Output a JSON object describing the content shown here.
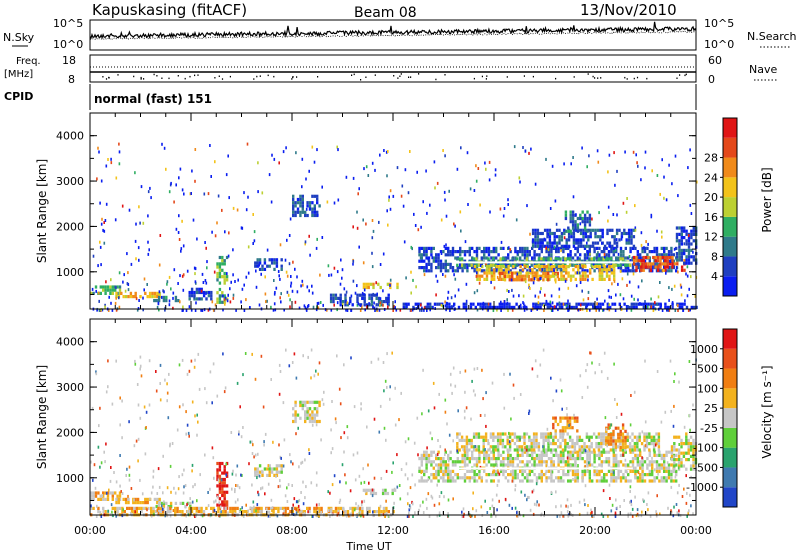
{
  "header": {
    "title": "Kapuskasing (fitACF)",
    "beam": "Beam 08",
    "date": "13/Nov/2010"
  },
  "noise_panel": {
    "left_label": "N.Sky",
    "right_label": "N.Search",
    "left_ticks": [
      "10^5",
      "10^0"
    ],
    "right_ticks": [
      "10^5",
      "10^0"
    ]
  },
  "freq_panel": {
    "left_label_line1": "Freq.",
    "left_label_line2": "[MHz]",
    "right_label": "Nave",
    "left_ticks": [
      "18",
      "8"
    ],
    "right_ticks": [
      "60",
      "0"
    ]
  },
  "cpid": {
    "label": "CPID",
    "value": "normal (fast) 151"
  },
  "x_axis": {
    "label": "Time UT",
    "ticks": [
      "00:00",
      "04:00",
      "08:00",
      "12:00",
      "16:00",
      "20:00",
      "00:00"
    ]
  },
  "power_panel": {
    "ylabel": "Slant Range [km]",
    "yticks": [
      "1000",
      "2000",
      "3000",
      "4000"
    ],
    "colorbar_label": "Power [dB]",
    "colorbar_ticks": [
      "4",
      "8",
      "12",
      "16",
      "20",
      "24",
      "28"
    ],
    "colors": [
      "#0a1ef0",
      "#1f3fc0",
      "#2f7a8a",
      "#2fae62",
      "#bcd032",
      "#f3c31a",
      "#f08a1a",
      "#e4481a",
      "#e01515"
    ]
  },
  "velocity_panel": {
    "ylabel": "Slant Range [km]",
    "yticks": [
      "1000",
      "2000",
      "3000",
      "4000"
    ],
    "colorbar_label": "Velocity [m s⁻¹]",
    "colorbar_ticks": [
      "1000",
      "500",
      "100",
      "25",
      "-25",
      "-100",
      "-500",
      "-1000"
    ],
    "colors": [
      "#2146c8",
      "#3f7ab0",
      "#2aa36e",
      "#5fcf3a",
      "#c6c6c6",
      "#f3b21e",
      "#f07e12",
      "#e8501a",
      "#e01515"
    ]
  },
  "chart_data": {
    "type": "heatmap",
    "x_range_hours": [
      0,
      24
    ],
    "y_range_km": [
      180,
      4500
    ],
    "power_blobs": [
      {
        "t0": 0.0,
        "t1": 1.2,
        "r0": 550,
        "r1": 700,
        "level": 3
      },
      {
        "t0": 1.0,
        "t1": 2.8,
        "r0": 470,
        "r1": 560,
        "level": 5
      },
      {
        "t0": 2.5,
        "t1": 3.8,
        "r0": 380,
        "r1": 470,
        "level": 2
      },
      {
        "t0": 3.9,
        "t1": 4.8,
        "r0": 400,
        "r1": 650,
        "level": 1
      },
      {
        "t0": 5.0,
        "t1": 5.4,
        "r0": 350,
        "r1": 1350,
        "level": 3
      },
      {
        "t0": 6.5,
        "t1": 7.6,
        "r0": 1050,
        "r1": 1300,
        "level": 1
      },
      {
        "t0": 8.0,
        "t1": 9.1,
        "r0": 2250,
        "r1": 2700,
        "level": 1
      },
      {
        "t0": 9.5,
        "t1": 11.8,
        "r0": 300,
        "r1": 520,
        "level": 1
      },
      {
        "t0": 10.8,
        "t1": 12.2,
        "r0": 650,
        "r1": 760,
        "level": 5
      },
      {
        "t0": 12.0,
        "t1": 24.0,
        "r0": 180,
        "r1": 320,
        "level": 0
      },
      {
        "t0": 13.0,
        "t1": 23.2,
        "r0": 1000,
        "r1": 1550,
        "level": 1
      },
      {
        "t0": 14.5,
        "t1": 21.5,
        "r0": 1120,
        "r1": 1320,
        "level": 3
      },
      {
        "t0": 15.2,
        "t1": 20.8,
        "r0": 850,
        "r1": 1150,
        "level": 5
      },
      {
        "t0": 16.2,
        "t1": 18.5,
        "r0": 800,
        "r1": 1000,
        "level": 6
      },
      {
        "t0": 17.5,
        "t1": 21.5,
        "r0": 1550,
        "r1": 1950,
        "level": 1
      },
      {
        "t0": 18.8,
        "t1": 19.8,
        "r0": 1900,
        "r1": 2350,
        "level": 2
      },
      {
        "t0": 21.5,
        "t1": 23.5,
        "r0": 1050,
        "r1": 1350,
        "level": 7
      },
      {
        "t0": 23.2,
        "t1": 24.0,
        "r0": 1200,
        "r1": 2000,
        "level": 1
      }
    ],
    "velocity_blobs": [
      {
        "t0": 0.0,
        "t1": 1.2,
        "r0": 550,
        "r1": 700,
        "level": 5
      },
      {
        "t0": 1.0,
        "t1": 2.8,
        "r0": 470,
        "r1": 560,
        "level": 5
      },
      {
        "t0": 2.5,
        "t1": 4.0,
        "r0": 380,
        "r1": 470,
        "level": 4
      },
      {
        "t0": 5.0,
        "t1": 5.4,
        "r0": 350,
        "r1": 1350,
        "level": 8
      },
      {
        "t0": 6.5,
        "t1": 7.6,
        "r0": 1050,
        "r1": 1300,
        "level": 4
      },
      {
        "t0": 8.0,
        "t1": 9.1,
        "r0": 2250,
        "r1": 2700,
        "level": 4
      },
      {
        "t0": 10.8,
        "t1": 12.2,
        "r0": 650,
        "r1": 760,
        "level": 4
      },
      {
        "t0": 0.0,
        "t1": 12.0,
        "r0": 180,
        "r1": 360,
        "level": 5
      },
      {
        "t0": 13.0,
        "t1": 23.2,
        "r0": 950,
        "r1": 1600,
        "level": 4
      },
      {
        "t0": 14.5,
        "t1": 22.5,
        "r0": 1600,
        "r1": 2000,
        "level": 4
      },
      {
        "t0": 18.3,
        "t1": 19.3,
        "r0": 2000,
        "r1": 2350,
        "level": 6
      },
      {
        "t0": 20.4,
        "t1": 21.2,
        "r0": 1700,
        "r1": 2200,
        "level": 6
      },
      {
        "t0": 23.0,
        "t1": 24.0,
        "r0": 1200,
        "r1": 2000,
        "level": 4
      }
    ]
  }
}
